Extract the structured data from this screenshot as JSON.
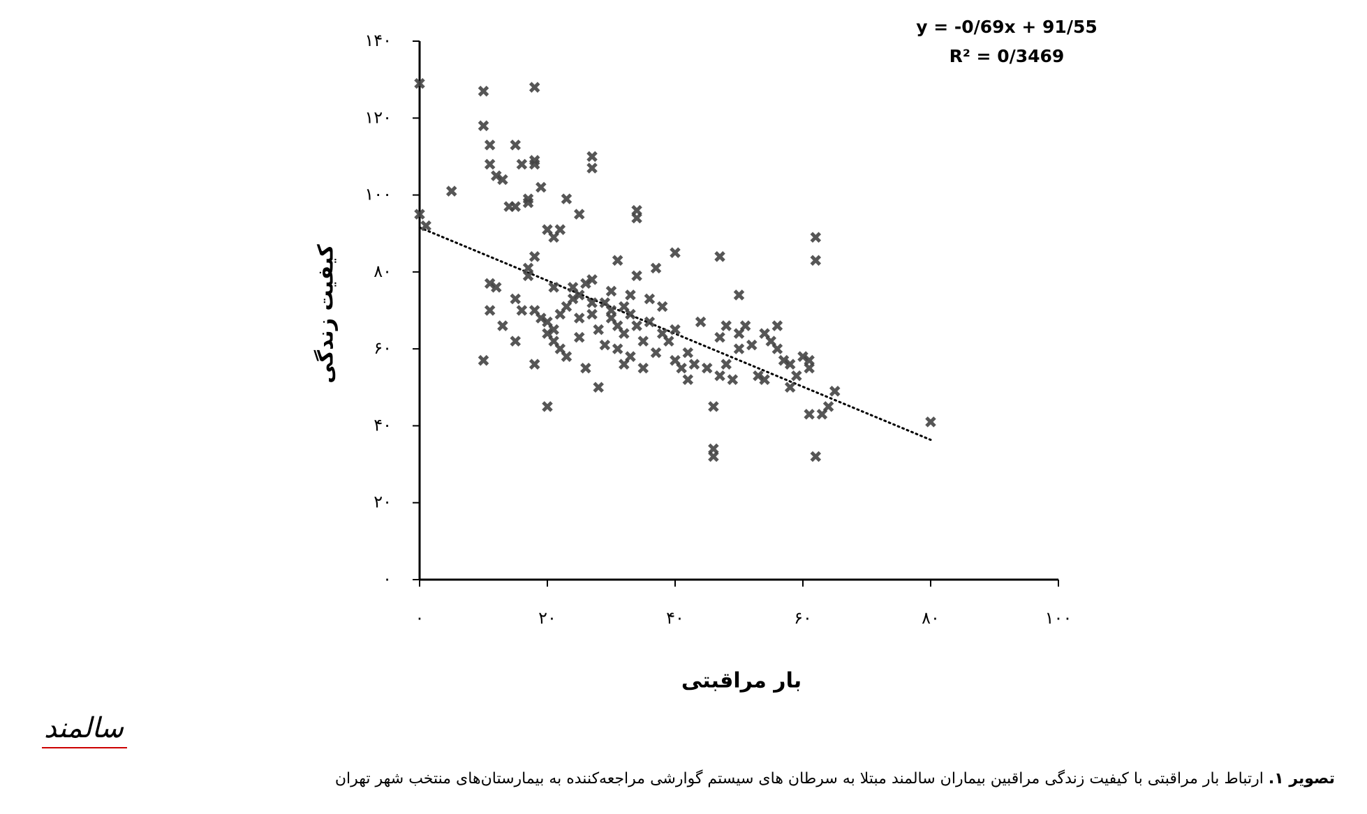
{
  "chart_data": {
    "type": "scatter",
    "equation": "y = -0/69x + 91/55",
    "r_squared": "R² = 0/3469",
    "xlabel": "بار مراقبتی",
    "ylabel": "کیفیت زندگی",
    "color": "#444444",
    "trendline": {
      "slope": -0.69,
      "intercept": 91.55,
      "xrange": [
        0,
        80
      ]
    },
    "xlim": [
      0,
      100
    ],
    "ylim": [
      0,
      140
    ],
    "xticks": [
      {
        "value": 0,
        "label": "۰"
      },
      {
        "value": 20,
        "label": "۲۰"
      },
      {
        "value": 40,
        "label": "۴۰"
      },
      {
        "value": 60,
        "label": "۶۰"
      },
      {
        "value": 80,
        "label": "۸۰"
      },
      {
        "value": 100,
        "label": "۱۰۰"
      }
    ],
    "yticks": [
      {
        "value": 0,
        "label": "۰"
      },
      {
        "value": 20,
        "label": "۲۰"
      },
      {
        "value": 40,
        "label": "۴۰"
      },
      {
        "value": 60,
        "label": "۶۰"
      },
      {
        "value": 80,
        "label": "۸۰"
      },
      {
        "value": 100,
        "label": "۱۰۰"
      },
      {
        "value": 120,
        "label": "۱۲۰"
      },
      {
        "value": 140,
        "label": "۱۴۰"
      }
    ],
    "x": [
      0,
      0,
      1,
      5,
      10,
      10,
      11,
      11,
      12,
      13,
      14,
      15,
      15,
      16,
      17,
      17,
      18,
      18,
      18,
      19,
      20,
      21,
      22,
      23,
      25,
      27,
      27,
      34,
      34,
      40,
      47,
      50,
      62,
      62,
      80,
      10,
      11,
      11,
      12,
      13,
      15,
      15,
      16,
      17,
      17,
      18,
      18,
      18,
      19,
      20,
      20,
      20,
      21,
      21,
      21,
      22,
      22,
      23,
      23,
      24,
      24,
      25,
      25,
      25,
      26,
      26,
      27,
      27,
      27,
      28,
      28,
      29,
      29,
      30,
      30,
      30,
      31,
      31,
      31,
      32,
      32,
      32,
      33,
      33,
      33,
      34,
      34,
      35,
      35,
      36,
      36,
      37,
      37,
      38,
      38,
      39,
      40,
      40,
      41,
      42,
      42,
      43,
      44,
      45,
      46,
      46,
      46,
      47,
      47,
      48,
      48,
      49,
      50,
      50,
      51,
      52,
      53,
      54,
      54,
      55,
      56,
      56,
      57,
      58,
      58,
      59,
      60,
      61,
      61,
      61,
      62,
      63,
      64,
      65
    ],
    "values": [
      129,
      95,
      92,
      101,
      127,
      118,
      108,
      113,
      105,
      104,
      97,
      97,
      113,
      108,
      99,
      98,
      109,
      128,
      108,
      102,
      91,
      89,
      91,
      99,
      95,
      107,
      110,
      96,
      94,
      85,
      84,
      74,
      89,
      83,
      41,
      57,
      70,
      77,
      76,
      66,
      73,
      62,
      70,
      81,
      79,
      70,
      56,
      84,
      68,
      67,
      64,
      45,
      65,
      62,
      76,
      60,
      69,
      58,
      71,
      73,
      76,
      74,
      68,
      63,
      77,
      55,
      69,
      72,
      78,
      65,
      50,
      72,
      61,
      68,
      70,
      75,
      83,
      66,
      60,
      71,
      64,
      56,
      69,
      74,
      58,
      79,
      66,
      62,
      55,
      73,
      67,
      59,
      81,
      64,
      71,
      62,
      65,
      57,
      55,
      59,
      52,
      56,
      67,
      55,
      45,
      32,
      34,
      53,
      63,
      66,
      56,
      52,
      64,
      60,
      66,
      61,
      53,
      52,
      64,
      62,
      60,
      66,
      57,
      50,
      56,
      53,
      58,
      55,
      57,
      43,
      32,
      43,
      45,
      49
    ]
  },
  "logo": "سالمند",
  "caption": {
    "label": "تصویر ۱.",
    "text": " ارتباط بار مراقبتی با کیفیت زندگی مراقبین بیماران سالمند مبتلا به سرطان های سیستم گوارشی مراجعه‌کننده به بیمارستان‌های منتخب شهر تهران"
  }
}
